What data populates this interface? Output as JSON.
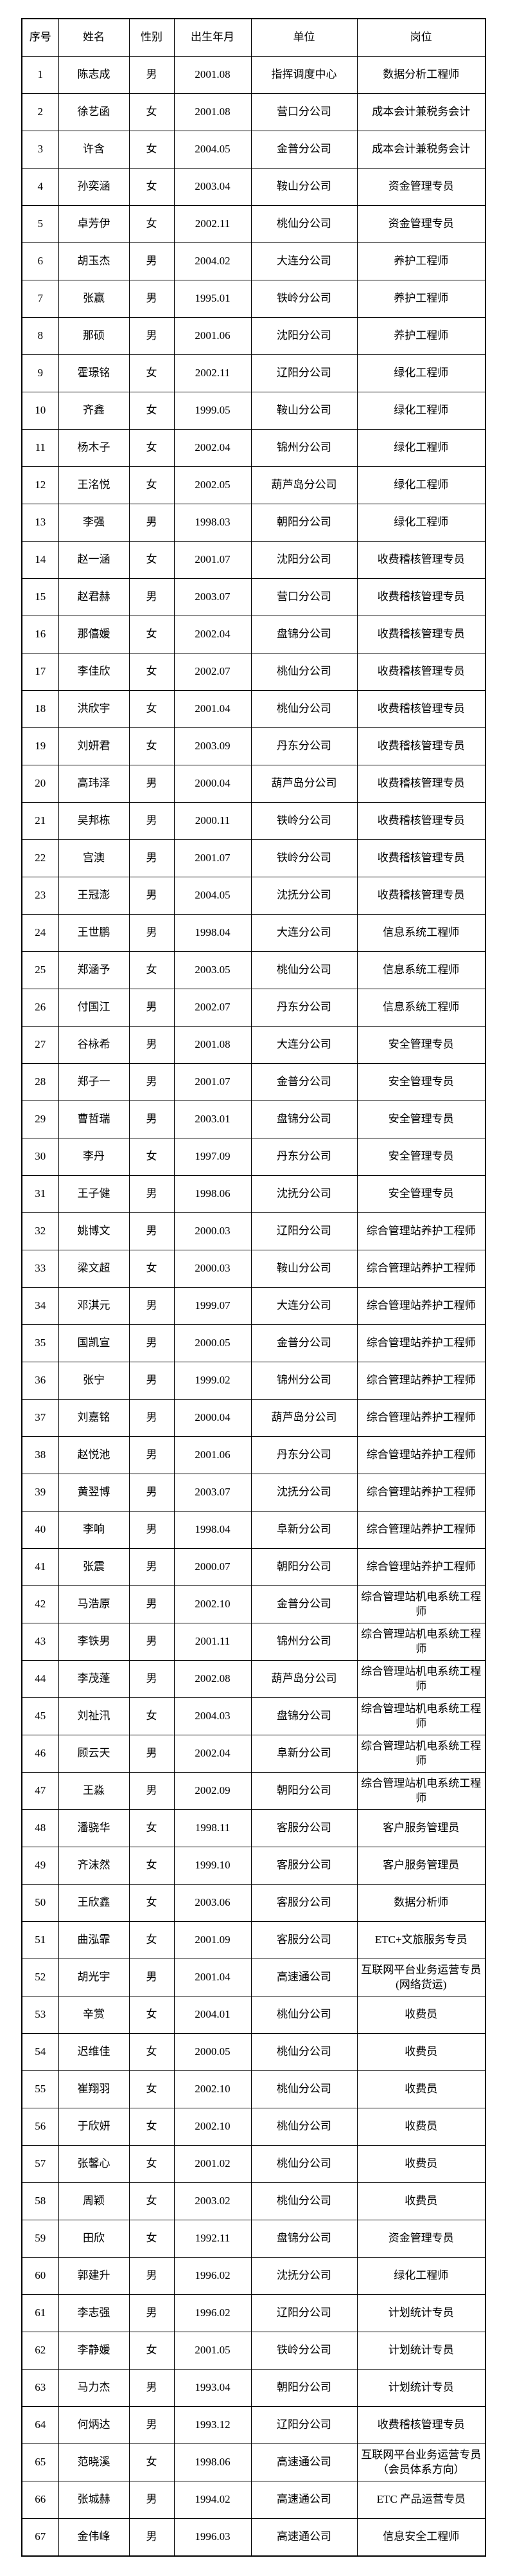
{
  "table": {
    "columns": [
      {
        "key": "seq",
        "label": "序号"
      },
      {
        "key": "name",
        "label": "姓名"
      },
      {
        "key": "gender",
        "label": "性别"
      },
      {
        "key": "birth",
        "label": "出生年月"
      },
      {
        "key": "unit",
        "label": "单位"
      },
      {
        "key": "post",
        "label": "岗位"
      }
    ],
    "rows": [
      [
        "1",
        "陈志成",
        "男",
        "2001.08",
        "指挥调度中心",
        "数据分析工程师"
      ],
      [
        "2",
        "徐艺函",
        "女",
        "2001.08",
        "营口分公司",
        "成本会计兼税务会计"
      ],
      [
        "3",
        "许含",
        "女",
        "2004.05",
        "金普分公司",
        "成本会计兼税务会计"
      ],
      [
        "4",
        "孙奕涵",
        "女",
        "2003.04",
        "鞍山分公司",
        "资金管理专员"
      ],
      [
        "5",
        "卓芳伊",
        "女",
        "2002.11",
        "桃仙分公司",
        "资金管理专员"
      ],
      [
        "6",
        "胡玉杰",
        "男",
        "2004.02",
        "大连分公司",
        "养护工程师"
      ],
      [
        "7",
        "张赢",
        "男",
        "1995.01",
        "铁岭分公司",
        "养护工程师"
      ],
      [
        "8",
        "那硕",
        "男",
        "2001.06",
        "沈阳分公司",
        "养护工程师"
      ],
      [
        "9",
        "霍璟铭",
        "女",
        "2002.11",
        "辽阳分公司",
        "绿化工程师"
      ],
      [
        "10",
        "齐鑫",
        "女",
        "1999.05",
        "鞍山分公司",
        "绿化工程师"
      ],
      [
        "11",
        "杨木子",
        "女",
        "2002.04",
        "锦州分公司",
        "绿化工程师"
      ],
      [
        "12",
        "王洺悦",
        "女",
        "2002.05",
        "葫芦岛分公司",
        "绿化工程师"
      ],
      [
        "13",
        "李强",
        "男",
        "1998.03",
        "朝阳分公司",
        "绿化工程师"
      ],
      [
        "14",
        "赵一涵",
        "女",
        "2001.07",
        "沈阳分公司",
        "收费稽核管理专员"
      ],
      [
        "15",
        "赵君赫",
        "男",
        "2003.07",
        "营口分公司",
        "收费稽核管理专员"
      ],
      [
        "16",
        "那僖媛",
        "女",
        "2002.04",
        "盘锦分公司",
        "收费稽核管理专员"
      ],
      [
        "17",
        "李佳欣",
        "女",
        "2002.07",
        "桃仙分公司",
        "收费稽核管理专员"
      ],
      [
        "18",
        "洪欣宇",
        "女",
        "2001.04",
        "桃仙分公司",
        "收费稽核管理专员"
      ],
      [
        "19",
        "刘妍君",
        "女",
        "2003.09",
        "丹东分公司",
        "收费稽核管理专员"
      ],
      [
        "20",
        "高玮泽",
        "男",
        "2000.04",
        "葫芦岛分公司",
        "收费稽核管理专员"
      ],
      [
        "21",
        "吴邦栋",
        "男",
        "2000.11",
        "铁岭分公司",
        "收费稽核管理专员"
      ],
      [
        "22",
        "宫澳",
        "男",
        "2001.07",
        "铁岭分公司",
        "收费稽核管理专员"
      ],
      [
        "23",
        "王冠澎",
        "男",
        "2004.05",
        "沈抚分公司",
        "收费稽核管理专员"
      ],
      [
        "24",
        "王世鹏",
        "男",
        "1998.04",
        "大连分公司",
        "信息系统工程师"
      ],
      [
        "25",
        "郑涵予",
        "女",
        "2003.05",
        "桃仙分公司",
        "信息系统工程师"
      ],
      [
        "26",
        "付国江",
        "男",
        "2002.07",
        "丹东分公司",
        "信息系统工程师"
      ],
      [
        "27",
        "谷栐希",
        "男",
        "2001.08",
        "大连分公司",
        "安全管理专员"
      ],
      [
        "28",
        "郑子一",
        "男",
        "2001.07",
        "金普分公司",
        "安全管理专员"
      ],
      [
        "29",
        "曹哲瑞",
        "男",
        "2003.01",
        "盘锦分公司",
        "安全管理专员"
      ],
      [
        "30",
        "李丹",
        "女",
        "1997.09",
        "丹东分公司",
        "安全管理专员"
      ],
      [
        "31",
        "王子健",
        "男",
        "1998.06",
        "沈抚分公司",
        "安全管理专员"
      ],
      [
        "32",
        "姚博文",
        "男",
        "2000.03",
        "辽阳分公司",
        "综合管理站养护工程师"
      ],
      [
        "33",
        "梁文超",
        "女",
        "2000.03",
        "鞍山分公司",
        "综合管理站养护工程师"
      ],
      [
        "34",
        "邓淇元",
        "男",
        "1999.07",
        "大连分公司",
        "综合管理站养护工程师"
      ],
      [
        "35",
        "国凯宣",
        "男",
        "2000.05",
        "金普分公司",
        "综合管理站养护工程师"
      ],
      [
        "36",
        "张宁",
        "男",
        "1999.02",
        "锦州分公司",
        "综合管理站养护工程师"
      ],
      [
        "37",
        "刘嘉铭",
        "男",
        "2000.04",
        "葫芦岛分公司",
        "综合管理站养护工程师"
      ],
      [
        "38",
        "赵悦池",
        "男",
        "2001.06",
        "丹东分公司",
        "综合管理站养护工程师"
      ],
      [
        "39",
        "黄翌博",
        "男",
        "2003.07",
        "沈抚分公司",
        "综合管理站养护工程师"
      ],
      [
        "40",
        "李响",
        "男",
        "1998.04",
        "阜新分公司",
        "综合管理站养护工程师"
      ],
      [
        "41",
        "张震",
        "男",
        "2000.07",
        "朝阳分公司",
        "综合管理站养护工程师"
      ],
      [
        "42",
        "马浩原",
        "男",
        "2002.10",
        "金普分公司",
        "综合管理站机电系统工程师"
      ],
      [
        "43",
        "李铁男",
        "男",
        "2001.11",
        "锦州分公司",
        "综合管理站机电系统工程师"
      ],
      [
        "44",
        "李茂蓬",
        "男",
        "2002.08",
        "葫芦岛分公司",
        "综合管理站机电系统工程师"
      ],
      [
        "45",
        "刘祉汛",
        "女",
        "2004.03",
        "盘锦分公司",
        "综合管理站机电系统工程师"
      ],
      [
        "46",
        "顾云天",
        "男",
        "2002.04",
        "阜新分公司",
        "综合管理站机电系统工程师"
      ],
      [
        "47",
        "王淼",
        "男",
        "2002.09",
        "朝阳分公司",
        "综合管理站机电系统工程师"
      ],
      [
        "48",
        "潘骁华",
        "女",
        "1998.11",
        "客服分公司",
        "客户服务管理员"
      ],
      [
        "49",
        "齐沫然",
        "女",
        "1999.10",
        "客服分公司",
        "客户服务管理员"
      ],
      [
        "50",
        "王欣鑫",
        "女",
        "2003.06",
        "客服分公司",
        "数据分析师"
      ],
      [
        "51",
        "曲泓霏",
        "女",
        "2001.09",
        "客服分公司",
        "ETC+文旅服务专员"
      ],
      [
        "52",
        "胡光宇",
        "男",
        "2001.04",
        "高速通公司",
        "互联网平台业务运营专员(网络货运)"
      ],
      [
        "53",
        "辛赏",
        "女",
        "2004.01",
        "桃仙分公司",
        "收费员"
      ],
      [
        "54",
        "迟维佳",
        "女",
        "2000.05",
        "桃仙分公司",
        "收费员"
      ],
      [
        "55",
        "崔翔羽",
        "女",
        "2002.10",
        "桃仙分公司",
        "收费员"
      ],
      [
        "56",
        "于欣妍",
        "女",
        "2002.10",
        "桃仙分公司",
        "收费员"
      ],
      [
        "57",
        "张馨心",
        "女",
        "2001.02",
        "桃仙分公司",
        "收费员"
      ],
      [
        "58",
        "周颖",
        "女",
        "2003.02",
        "桃仙分公司",
        "收费员"
      ],
      [
        "59",
        "田欣",
        "女",
        "1992.11",
        "盘锦分公司",
        "资金管理专员"
      ],
      [
        "60",
        "郭建升",
        "男",
        "1996.02",
        "沈抚分公司",
        "绿化工程师"
      ],
      [
        "61",
        "李志强",
        "男",
        "1996.02",
        "辽阳分公司",
        "计划统计专员"
      ],
      [
        "62",
        "李静媛",
        "女",
        "2001.05",
        "铁岭分公司",
        "计划统计专员"
      ],
      [
        "63",
        "马力杰",
        "男",
        "1993.04",
        "朝阳分公司",
        "计划统计专员"
      ],
      [
        "64",
        "何炳达",
        "男",
        "1993.12",
        "辽阳分公司",
        "收费稽核管理专员"
      ],
      [
        "65",
        "范晓溪",
        "女",
        "1998.06",
        "高速通公司",
        "互联网平台业务运营专员（会员体系方向）"
      ],
      [
        "66",
        "张城赫",
        "男",
        "1994.02",
        "高速通公司",
        "ETC 产品运营专员"
      ],
      [
        "67",
        "金伟峰",
        "男",
        "1996.03",
        "高速通公司",
        "信息安全工程师"
      ]
    ]
  }
}
